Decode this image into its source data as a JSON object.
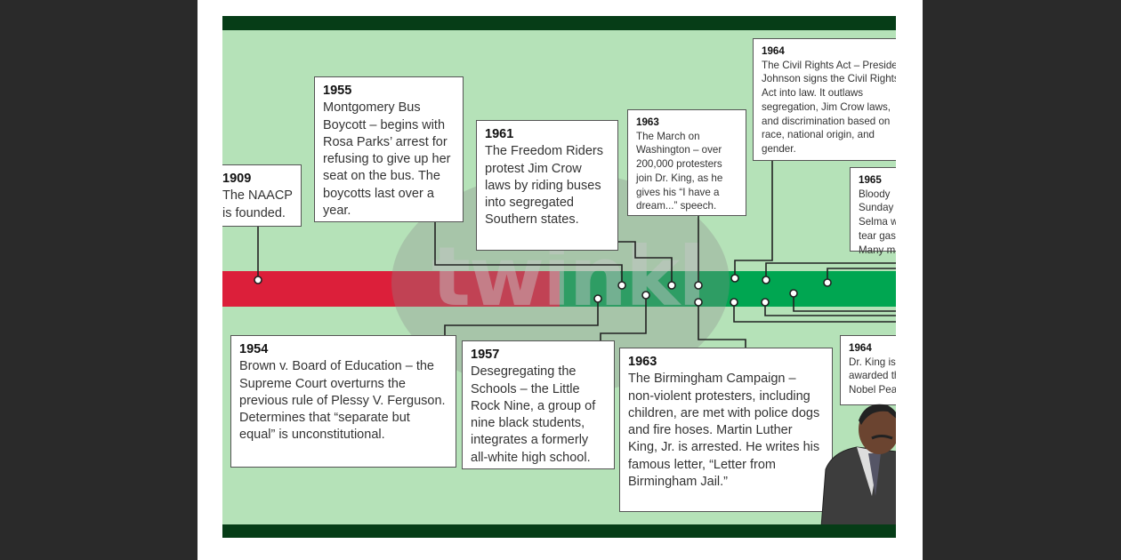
{
  "watermark": "twinkl",
  "colors": {
    "background": "#2a2a2a",
    "poster": "#b5e2b8",
    "band": "#063d17",
    "bar_red": "#dc1f3a",
    "bar_green": "#00a651"
  },
  "events_above": [
    {
      "year": "1909",
      "text": "The NAACP is founded."
    },
    {
      "year": "1955",
      "text": "Montgomery Bus Boycott – begins with Rosa Parks’ arrest for refusing to give up her seat on the bus. The boycotts last over a year."
    },
    {
      "year": "1961",
      "text": "The Freedom Riders protest Jim Crow laws by riding buses into segregated Southern states."
    },
    {
      "year": "1963",
      "text": "The March on Washington – over 200,000 protesters join Dr. King, as he gives his “I have a dream...” speech."
    },
    {
      "year": "1964",
      "text": "The Civil Rights Act – President Johnson signs the Civil Rights Act into law. It outlaws segregation, Jim Crow laws, and discrimination based on race, national origin, and gender."
    },
    {
      "year": "1965",
      "text": "Bloody Sunday in Selma with tear gas. Many m"
    }
  ],
  "events_below": [
    {
      "year": "1954",
      "text": "Brown v. Board of Education – the Supreme Court overturns the previous rule of Plessy V. Ferguson. Determines that “separate but equal” is unconstitutional."
    },
    {
      "year": "1957",
      "text": "Desegregating the Schools – the Little Rock Nine, a group of nine black students, integrates a formerly all-white high school."
    },
    {
      "year": "1963",
      "text": "The Birmingham Campaign – non-violent protesters, including children, are met with police dogs and fire hoses. Martin Luther King, Jr. is arrested. He writes his famous letter, “Letter from Birmingham Jail.”"
    },
    {
      "year": "1964",
      "text": "Dr. King is awarded the Nobel Peace"
    }
  ]
}
